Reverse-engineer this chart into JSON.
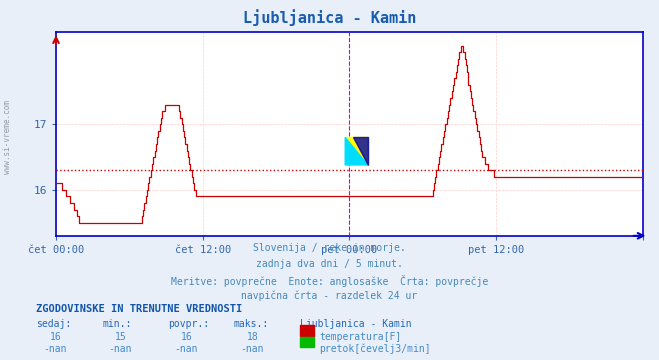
{
  "title": "Ljubljanica - Kamin",
  "title_color": "#1a5cb0",
  "bg_color": "#e8eff8",
  "plot_bg_color": "#ffffff",
  "line_color": "#cc0000",
  "avg_line_color": "#cc0000",
  "avg_line_value": 16.3,
  "vline_color": "#cc00cc",
  "grid_color": "#ffcccc",
  "axis_color": "#0000cc",
  "tick_color": "#3366aa",
  "ylabel_vals": [
    16,
    17
  ],
  "ylim": [
    15.3,
    18.4
  ],
  "xlim": [
    0,
    576
  ],
  "xtick_positions": [
    0,
    144,
    288,
    432,
    576
  ],
  "xtick_labels": [
    "čet 00:00",
    "čet 12:00",
    "pet 00:00",
    "pet 12:00",
    ""
  ],
  "vline_positions": [
    288,
    576
  ],
  "subtitle_lines": [
    "Slovenija / reke in morje.",
    "zadnja dva dni / 5 minut.",
    "Meritve: povprečne  Enote: anglosaške  Črta: povprečje",
    "navpična črta - razdelek 24 ur"
  ],
  "table_header": "ZGODOVINSKE IN TRENUTNE VREDNOSTI",
  "col_headers": [
    "sedaj:",
    "min.:",
    "povpr.:",
    "maks.:",
    "Ljubljanica - Kamin"
  ],
  "row1": [
    "16",
    "15",
    "16",
    "18",
    "temperatura[F]"
  ],
  "row2": [
    "-nan",
    "-nan",
    "-nan",
    "-nan",
    "pretok[čevelj3/min]"
  ],
  "legend_color1": "#cc0000",
  "legend_color2": "#00bb00",
  "sidebar_text": "www.si-vreme.com",
  "temp_values": [
    16.1,
    16.1,
    16.1,
    16.1,
    16.1,
    16.0,
    16.0,
    16.0,
    15.9,
    15.9,
    15.9,
    15.8,
    15.8,
    15.8,
    15.7,
    15.7,
    15.6,
    15.6,
    15.5,
    15.5,
    15.5,
    15.5,
    15.5,
    15.5,
    15.5,
    15.5,
    15.5,
    15.5,
    15.5,
    15.5,
    15.5,
    15.5,
    15.5,
    15.5,
    15.5,
    15.5,
    15.5,
    15.5,
    15.5,
    15.5,
    15.5,
    15.5,
    15.5,
    15.5,
    15.5,
    15.5,
    15.5,
    15.5,
    15.5,
    15.5,
    15.5,
    15.5,
    15.5,
    15.5,
    15.5,
    15.5,
    15.5,
    15.5,
    15.5,
    15.5,
    15.5,
    15.5,
    15.5,
    15.5,
    15.5,
    15.5,
    15.5,
    15.6,
    15.7,
    15.8,
    15.9,
    16.0,
    16.1,
    16.2,
    16.3,
    16.4,
    16.5,
    16.6,
    16.7,
    16.8,
    16.9,
    17.0,
    17.1,
    17.2,
    17.2,
    17.3,
    17.3,
    17.3,
    17.3,
    17.3,
    17.3,
    17.3,
    17.3,
    17.3,
    17.3,
    17.3,
    17.2,
    17.1,
    17.0,
    16.9,
    16.8,
    16.7,
    16.6,
    16.5,
    16.4,
    16.3,
    16.2,
    16.1,
    16.0,
    15.9,
    15.9,
    15.9,
    15.9,
    15.9,
    15.9,
    15.9,
    15.9,
    15.9,
    15.9,
    15.9,
    15.9,
    15.9,
    15.9,
    15.9,
    15.9,
    15.9,
    15.9,
    15.9,
    15.9,
    15.9,
    15.9,
    15.9,
    15.9,
    15.9,
    15.9,
    15.9,
    15.9,
    15.9,
    15.9,
    15.9,
    15.9,
    15.9,
    15.9,
    15.9,
    15.9,
    15.9,
    15.9,
    15.9,
    15.9,
    15.9,
    15.9,
    15.9,
    15.9,
    15.9,
    15.9,
    15.9,
    15.9,
    15.9,
    15.9,
    15.9,
    15.9,
    15.9,
    15.9,
    15.9,
    15.9,
    15.9,
    15.9,
    15.9,
    15.9,
    15.9,
    15.9,
    15.9,
    15.9,
    15.9,
    15.9,
    15.9,
    15.9,
    15.9,
    15.9,
    15.9,
    15.9,
    15.9,
    15.9,
    15.9,
    15.9,
    15.9,
    15.9,
    15.9,
    15.9,
    15.9,
    15.9,
    15.9,
    15.9,
    15.9,
    15.9,
    15.9,
    15.9,
    15.9,
    15.9,
    15.9,
    15.9,
    15.9,
    15.9,
    15.9,
    15.9,
    15.9,
    15.9,
    15.9,
    15.9,
    15.9,
    15.9,
    15.9,
    15.9,
    15.9,
    15.9,
    15.9,
    15.9,
    15.9,
    15.9,
    15.9,
    15.9,
    15.9,
    15.9,
    15.9,
    15.9,
    15.9,
    15.9,
    15.9,
    15.9,
    15.9,
    15.9,
    15.9,
    15.9,
    15.9,
    15.9,
    15.9,
    15.9,
    15.9,
    15.9,
    15.9,
    15.9,
    15.9,
    15.9,
    15.9,
    15.9,
    15.9,
    15.9,
    15.9,
    15.9,
    15.9,
    15.9,
    15.9,
    15.9,
    15.9,
    15.9,
    15.9,
    15.9,
    15.9,
    15.9,
    15.9,
    15.9,
    15.9,
    15.9,
    15.9,
    15.9,
    15.9,
    15.9,
    15.9,
    15.9,
    15.9,
    15.9,
    15.9,
    15.9,
    15.9,
    15.9,
    15.9,
    15.9,
    15.9,
    15.9,
    15.9,
    15.9,
    15.9,
    15.9,
    15.9,
    15.9,
    15.9,
    15.9,
    15.9,
    15.9,
    15.9,
    15.9,
    15.9,
    15.9,
    15.9,
    16.0,
    16.1,
    16.2,
    16.3,
    16.4,
    16.5,
    16.6,
    16.7,
    16.8,
    16.9,
    17.0,
    17.1,
    17.2,
    17.3,
    17.4,
    17.5,
    17.6,
    17.7,
    17.8,
    17.9,
    18.0,
    18.1,
    18.2,
    18.2,
    18.1,
    18.0,
    17.9,
    17.8,
    17.6,
    17.5,
    17.4,
    17.3,
    17.2,
    17.1,
    17.0,
    16.9,
    16.8,
    16.7,
    16.6,
    16.5,
    16.5,
    16.4,
    16.4,
    16.3,
    16.3,
    16.3,
    16.3,
    16.3,
    16.2,
    16.2,
    16.2,
    16.2,
    16.2,
    16.2,
    16.2,
    16.2,
    16.2,
    16.2,
    16.2,
    16.2,
    16.2,
    16.2,
    16.2,
    16.2,
    16.2,
    16.2,
    16.2,
    16.2,
    16.2,
    16.2,
    16.2,
    16.2,
    16.2,
    16.2,
    16.2,
    16.2,
    16.2,
    16.2,
    16.2,
    16.2,
    16.2,
    16.2,
    16.2,
    16.2,
    16.2,
    16.2,
    16.2,
    16.2,
    16.2,
    16.2,
    16.2,
    16.2,
    16.2,
    16.2,
    16.2,
    16.2,
    16.2,
    16.2,
    16.2,
    16.2,
    16.2,
    16.2,
    16.2,
    16.2,
    16.2,
    16.2,
    16.2,
    16.2,
    16.2,
    16.2,
    16.2,
    16.2,
    16.2,
    16.2,
    16.2,
    16.2,
    16.2,
    16.2,
    16.2,
    16.2,
    16.2,
    16.2,
    16.2,
    16.2,
    16.2,
    16.2,
    16.2,
    16.2,
    16.2,
    16.2,
    16.2,
    16.2,
    16.2,
    16.2,
    16.2,
    16.2,
    16.2,
    16.2,
    16.2,
    16.2,
    16.2,
    16.2,
    16.2,
    16.2,
    16.2,
    16.2,
    16.2,
    16.2,
    16.2,
    16.2,
    16.2,
    16.2,
    16.2,
    16.2,
    16.2,
    16.2,
    16.2,
    16.2,
    16.2,
    16.2,
    16.2,
    16.2,
    16.2,
    16.2,
    16.2
  ]
}
